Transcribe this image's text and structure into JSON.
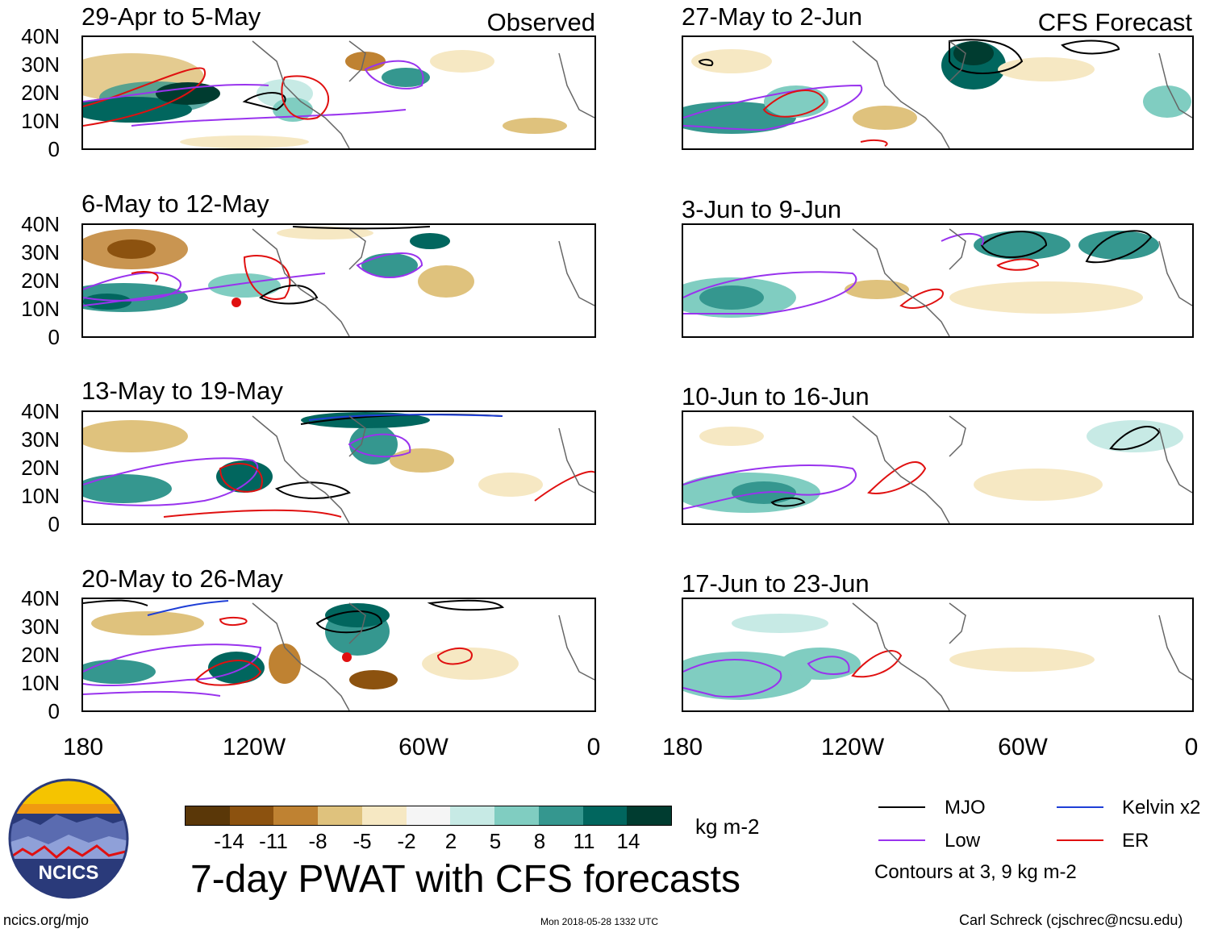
{
  "observed_heading": "Observed",
  "forecast_heading": "CFS Forecast",
  "y_ticks": [
    "40N",
    "30N",
    "20N",
    "10N",
    "0"
  ],
  "x_ticks": [
    "180",
    "120W",
    "60W",
    "0"
  ],
  "observed_panels": [
    {
      "title": "29-Apr to 5-May"
    },
    {
      "title": "6-May to 12-May"
    },
    {
      "title": "13-May to 19-May"
    },
    {
      "title": "20-May to 26-May"
    }
  ],
  "forecast_panels": [
    {
      "title": "27-May to 2-Jun"
    },
    {
      "title": "3-Jun to 9-Jun"
    },
    {
      "title": "10-Jun to 16-Jun"
    },
    {
      "title": "17-Jun to 23-Jun"
    }
  ],
  "colorbar": {
    "ticks": [
      "-14",
      "-11",
      "-8",
      "-5",
      "-2",
      "2",
      "5",
      "8",
      "11",
      "14"
    ],
    "units": "kg m-2",
    "colors": [
      "#5a3708",
      "#8c520f",
      "#bf8232",
      "#dfc27d",
      "#f6e8c3",
      "#f5f5f5",
      "#c7eae5",
      "#80cdc1",
      "#35978f",
      "#01665e",
      "#003c30"
    ]
  },
  "main_title": "7-day PWAT with CFS forecasts",
  "legend": {
    "items": [
      {
        "label": "MJO",
        "color": "#000000"
      },
      {
        "label": "Kelvin x2",
        "color": "#1f3fd6"
      },
      {
        "label": "Low",
        "color": "#9933ee"
      },
      {
        "label": "ER",
        "color": "#e01010"
      }
    ],
    "note": "Contours at 3, 9 kg m-2"
  },
  "logo_text": "NCICS",
  "footer": {
    "left": "ncics.org/mjo",
    "center": "Mon 2018-05-28 1332 UTC",
    "right": "Carl Schreck (cjschrec@ncsu.edu)"
  }
}
